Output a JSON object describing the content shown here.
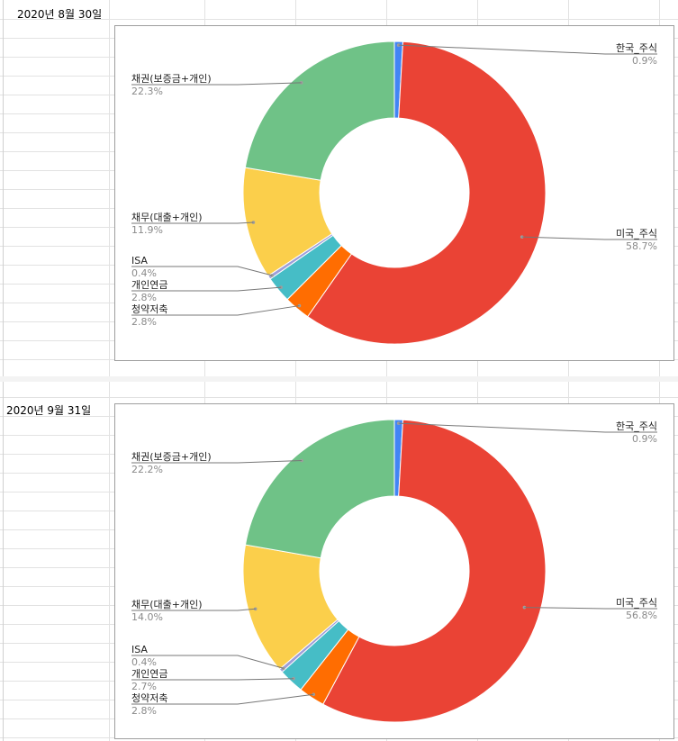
{
  "sheet": {
    "date_labels": [
      "2020년 8월 30일",
      "2020년 9월 31일"
    ]
  },
  "colors": {
    "한국_주식": "#4285f4",
    "미국_주식": "#ea4335",
    "청약저축": "#ff6d01",
    "개인연금": "#46bdc6",
    "ISA": "#9e9ed9",
    "채무(대출+개인)": "#fbcf4b",
    "채권(보증금+개인)": "#6fc287"
  },
  "chart_data": [
    {
      "type": "pie",
      "donut": true,
      "title": "",
      "legend": "none",
      "labels": [
        "한국_주식",
        "미국_주식",
        "청약저축",
        "개인연금",
        "ISA",
        "채무(대출+개인)",
        "채권(보증금+개인)"
      ],
      "values": [
        0.9,
        58.7,
        2.8,
        2.8,
        0.4,
        11.9,
        22.3
      ],
      "value_labels": [
        "0.9%",
        "58.7%",
        "2.8%",
        "2.8%",
        "0.4%",
        "11.9%",
        "22.3%"
      ]
    },
    {
      "type": "pie",
      "donut": true,
      "title": "",
      "legend": "none",
      "labels": [
        "한국_주식",
        "미국_주식",
        "청약저축",
        "개인연금",
        "ISA",
        "채무(대출+개인)",
        "채권(보증금+개인)"
      ],
      "values": [
        0.9,
        56.8,
        2.8,
        2.7,
        0.4,
        14.0,
        22.2
      ],
      "value_labels": [
        "0.9%",
        "56.8%",
        "2.8%",
        "2.7%",
        "0.4%",
        "14.0%",
        "22.2%"
      ]
    }
  ]
}
